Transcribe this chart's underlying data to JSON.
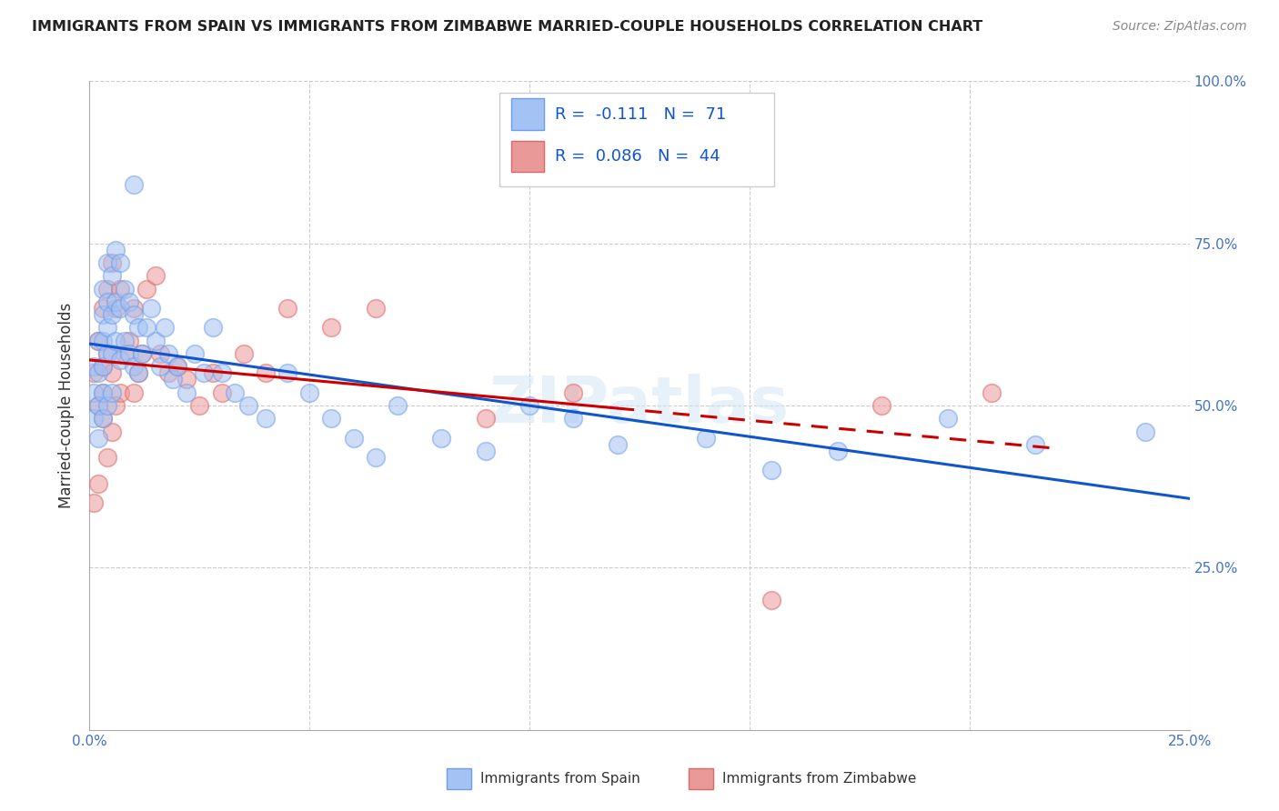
{
  "title": "IMMIGRANTS FROM SPAIN VS IMMIGRANTS FROM ZIMBABWE MARRIED-COUPLE HOUSEHOLDS CORRELATION CHART",
  "source": "Source: ZipAtlas.com",
  "ylabel": "Married-couple Households",
  "x_min": 0.0,
  "x_max": 0.25,
  "y_min": 0.0,
  "y_max": 1.0,
  "spain_R": -0.111,
  "spain_N": 71,
  "zimbabwe_R": 0.086,
  "zimbabwe_N": 44,
  "spain_color": "#a4c2f4",
  "spain_edge_color": "#6d9eeb",
  "zimbabwe_color": "#ea9999",
  "zimbabwe_edge_color": "#e06666",
  "spain_line_color": "#1155cc",
  "zimbabwe_line_color": "#cc0000",
  "legend_label_spain": "Immigrants from Spain",
  "legend_label_zimbabwe": "Immigrants from Zimbabwe",
  "watermark": "ZIPatlas",
  "legend_R_color": "#1155cc",
  "legend_N_color": "#1155cc",
  "spain_x": [
    0.001,
    0.001,
    0.001,
    0.002,
    0.002,
    0.002,
    0.002,
    0.003,
    0.003,
    0.003,
    0.003,
    0.003,
    0.003,
    0.004,
    0.004,
    0.004,
    0.004,
    0.004,
    0.005,
    0.005,
    0.005,
    0.005,
    0.006,
    0.006,
    0.006,
    0.007,
    0.007,
    0.007,
    0.008,
    0.008,
    0.009,
    0.009,
    0.01,
    0.01,
    0.01,
    0.011,
    0.011,
    0.012,
    0.013,
    0.014,
    0.015,
    0.016,
    0.017,
    0.018,
    0.019,
    0.02,
    0.022,
    0.024,
    0.026,
    0.028,
    0.03,
    0.033,
    0.036,
    0.04,
    0.045,
    0.05,
    0.055,
    0.06,
    0.065,
    0.07,
    0.08,
    0.09,
    0.1,
    0.11,
    0.12,
    0.14,
    0.155,
    0.17,
    0.195,
    0.215,
    0.24
  ],
  "spain_y": [
    0.56,
    0.52,
    0.48,
    0.6,
    0.55,
    0.5,
    0.45,
    0.68,
    0.64,
    0.6,
    0.56,
    0.52,
    0.48,
    0.72,
    0.66,
    0.62,
    0.58,
    0.5,
    0.7,
    0.64,
    0.58,
    0.52,
    0.74,
    0.66,
    0.6,
    0.72,
    0.65,
    0.57,
    0.68,
    0.6,
    0.66,
    0.58,
    0.84,
    0.64,
    0.56,
    0.62,
    0.55,
    0.58,
    0.62,
    0.65,
    0.6,
    0.56,
    0.62,
    0.58,
    0.54,
    0.56,
    0.52,
    0.58,
    0.55,
    0.62,
    0.55,
    0.52,
    0.5,
    0.48,
    0.55,
    0.52,
    0.48,
    0.45,
    0.42,
    0.5,
    0.45,
    0.43,
    0.5,
    0.48,
    0.44,
    0.45,
    0.4,
    0.43,
    0.48,
    0.44,
    0.46
  ],
  "zimbabwe_x": [
    0.001,
    0.001,
    0.002,
    0.002,
    0.002,
    0.003,
    0.003,
    0.003,
    0.003,
    0.004,
    0.004,
    0.004,
    0.005,
    0.005,
    0.005,
    0.006,
    0.006,
    0.007,
    0.007,
    0.008,
    0.009,
    0.01,
    0.01,
    0.011,
    0.012,
    0.013,
    0.015,
    0.016,
    0.018,
    0.02,
    0.022,
    0.025,
    0.028,
    0.03,
    0.035,
    0.04,
    0.045,
    0.055,
    0.065,
    0.09,
    0.11,
    0.155,
    0.18,
    0.205
  ],
  "zimbabwe_y": [
    0.55,
    0.35,
    0.6,
    0.5,
    0.38,
    0.56,
    0.52,
    0.48,
    0.65,
    0.42,
    0.58,
    0.68,
    0.46,
    0.55,
    0.72,
    0.5,
    0.65,
    0.52,
    0.68,
    0.58,
    0.6,
    0.52,
    0.65,
    0.55,
    0.58,
    0.68,
    0.7,
    0.58,
    0.55,
    0.56,
    0.54,
    0.5,
    0.55,
    0.52,
    0.58,
    0.55,
    0.65,
    0.62,
    0.65,
    0.48,
    0.52,
    0.2,
    0.5,
    0.52
  ]
}
